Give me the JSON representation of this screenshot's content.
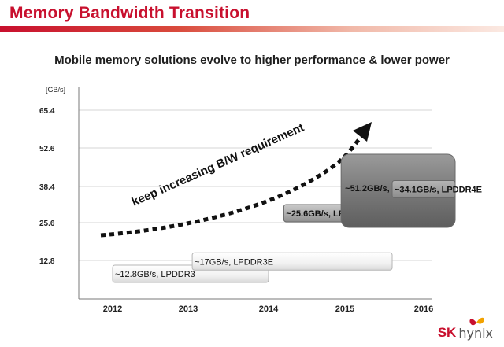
{
  "header": {
    "title": "Memory Bandwidth Transition",
    "subtitle": "Mobile memory solutions evolve to higher performance & lower power"
  },
  "brand": {
    "sk": "SK",
    "hynix": "hynix",
    "accent": "#c8102e"
  },
  "chart_data": {
    "type": "bar",
    "title": "",
    "ylabel": "[GB/s]",
    "xlabel": "",
    "x_ticks": [
      "2012",
      "2013",
      "2014",
      "2015",
      "2016"
    ],
    "y_ticks": [
      "12.8",
      "25.6",
      "38.4",
      "52.6",
      "65.4"
    ],
    "xlim": [
      2011.6,
      2016.3
    ],
    "ylim": [
      0,
      75
    ],
    "grid": true,
    "series": [
      {
        "label": "~12.8GB/s, LPDDR3",
        "bandwidth": 12.8,
        "start": 2012.0,
        "end": 2014.0,
        "style": "light"
      },
      {
        "label": "~17GB/s, LPDDR3E",
        "bandwidth": 17,
        "start": 2013.05,
        "end": 2015.6,
        "style": "light"
      },
      {
        "label": "~25.6GB/s, LPDDR4",
        "bandwidth": 25.6,
        "start": 2014.2,
        "end": 2016.3,
        "style": "mid"
      },
      {
        "label": "~51.2GB/s, WIO2",
        "bandwidth": 51.2,
        "start": 2014.95,
        "end": 2016.4,
        "style": "dark"
      },
      {
        "label": "~34.1GB/s, LPDDR4E",
        "bandwidth": 34.1,
        "start": 2015.6,
        "end": 2016.4,
        "style": "dark2"
      }
    ],
    "annotation": "keep increasing B/W requirement"
  }
}
